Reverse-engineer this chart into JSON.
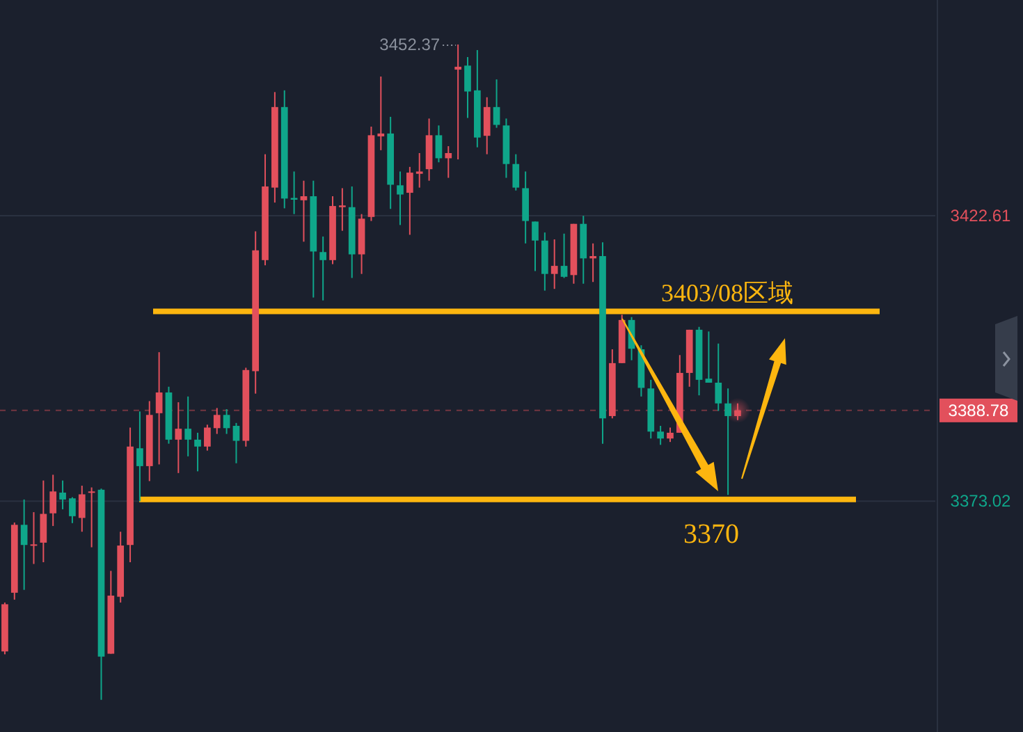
{
  "chart_data": {
    "type": "candlestick",
    "categories": [
      null,
      null,
      null,
      null,
      null,
      null,
      null,
      null,
      null,
      null,
      null,
      null,
      null,
      null,
      null,
      null,
      null,
      null,
      null,
      null,
      null,
      null,
      null,
      null,
      null,
      null,
      null,
      null,
      null,
      null,
      null,
      null,
      null,
      null,
      null,
      null,
      null,
      null,
      null,
      null,
      null,
      null,
      null,
      null,
      null,
      null,
      null,
      null,
      null,
      null,
      null,
      null,
      null,
      null,
      null,
      null,
      null,
      null,
      null,
      null,
      null,
      null,
      null,
      null,
      null,
      null,
      null,
      null,
      null,
      null,
      null,
      null,
      null,
      null,
      null,
      null,
      null,
      null,
      null,
      null,
      null,
      null,
      null,
      null,
      null,
      null,
      null,
      null,
      null,
      null,
      null,
      null,
      null,
      null,
      null,
      null,
      null
    ],
    "ohlc": [
      [
        3346.9,
        3355.4,
        3346.4,
        3355.1
      ],
      [
        3357.1,
        3369.3,
        3355.9,
        3368.9
      ],
      [
        3368.9,
        3373.3,
        3357.6,
        3365.4
      ],
      [
        3365.4,
        3371.1,
        3362.1,
        3365.5
      ],
      [
        3365.8,
        3376.6,
        3362.4,
        3370.8
      ],
      [
        3370.9,
        3377.6,
        3368.7,
        3374.7
      ],
      [
        3374.5,
        3376.6,
        3371.6,
        3373.3
      ],
      [
        3373.5,
        3373.7,
        3369.2,
        3370.4
      ],
      [
        3370.1,
        3375.7,
        3367.7,
        3374.2
      ],
      [
        3374.5,
        3375.4,
        3365.0,
        3374.7
      ],
      [
        3375.0,
        3375.2,
        3338.5,
        3346.0
      ],
      [
        3346.5,
        3360.9,
        3346.5,
        3356.6
      ],
      [
        3356.4,
        3367.7,
        3355.4,
        3365.3
      ],
      [
        3365.4,
        3385.8,
        3362.4,
        3382.5
      ],
      [
        3382.2,
        3388.6,
        3373.0,
        3379.1
      ],
      [
        3379.1,
        3390.4,
        3376.5,
        3388.0
      ],
      [
        3388.3,
        3398.9,
        3379.4,
        3391.9
      ],
      [
        3391.9,
        3392.9,
        3383.0,
        3383.7
      ],
      [
        3383.7,
        3390.2,
        3377.9,
        3385.6
      ],
      [
        3385.6,
        3391.2,
        3380.8,
        3383.7
      ],
      [
        3383.7,
        3384.9,
        3378.2,
        3382.5
      ],
      [
        3382.5,
        3386.3,
        3381.8,
        3385.8
      ],
      [
        3385.7,
        3389.2,
        3384.7,
        3388.0
      ],
      [
        3388.0,
        3389.0,
        3384.7,
        3385.7
      ],
      [
        3386.1,
        3386.6,
        3379.6,
        3383.5
      ],
      [
        3383.5,
        3396.2,
        3382.5,
        3395.8
      ],
      [
        3395.6,
        3419.9,
        3391.7,
        3416.6
      ],
      [
        3414.9,
        3433.3,
        3414.0,
        3427.7
      ],
      [
        3427.5,
        3444.1,
        3424.9,
        3441.5
      ],
      [
        3441.5,
        3444.4,
        3423.9,
        3425.6
      ],
      [
        3425.7,
        3430.3,
        3422.9,
        3425.4
      ],
      [
        3425.3,
        3428.7,
        3418.1,
        3426.0
      ],
      [
        3426.0,
        3428.7,
        3408.4,
        3416.4
      ],
      [
        3416.3,
        3419.0,
        3407.9,
        3414.9
      ],
      [
        3414.9,
        3426.0,
        3414.2,
        3424.3
      ],
      [
        3424.1,
        3427.4,
        3420.0,
        3424.4
      ],
      [
        3424.1,
        3427.7,
        3411.8,
        3415.9
      ],
      [
        3415.9,
        3422.9,
        3412.5,
        3422.1
      ],
      [
        3422.4,
        3438.1,
        3421.7,
        3436.6
      ],
      [
        3436.4,
        3446.8,
        3434.0,
        3436.9
      ],
      [
        3436.9,
        3439.8,
        3423.8,
        3428.0
      ],
      [
        3427.9,
        3430.3,
        3421.0,
        3426.3
      ],
      [
        3426.6,
        3431.1,
        3419.3,
        3430.1
      ],
      [
        3429.9,
        3433.5,
        3427.5,
        3430.3
      ],
      [
        3430.7,
        3439.5,
        3428.7,
        3436.6
      ],
      [
        3436.6,
        3438.3,
        3431.9,
        3432.6
      ],
      [
        3432.6,
        3434.7,
        3429.2,
        3433.5
      ],
      [
        3448.0,
        3452.37,
        3432.4,
        3448.5
      ],
      [
        3448.7,
        3450.2,
        3439.6,
        3444.2
      ],
      [
        3444.4,
        3451.4,
        3434.5,
        3436.2
      ],
      [
        3436.5,
        3443.2,
        3433.3,
        3441.5
      ],
      [
        3441.5,
        3446.3,
        3437.9,
        3438.4
      ],
      [
        3438.3,
        3439.5,
        3429.2,
        3431.6
      ],
      [
        3431.6,
        3433.3,
        3427.0,
        3427.5
      ],
      [
        3427.4,
        3430.3,
        3417.8,
        3421.7
      ],
      [
        3421.6,
        3421.6,
        3413.0,
        3418.3
      ],
      [
        3418.3,
        3419.7,
        3409.6,
        3412.5
      ],
      [
        3412.5,
        3418.5,
        3409.9,
        3413.9
      ],
      [
        3413.9,
        3419.5,
        3411.8,
        3412.0
      ],
      [
        3412.3,
        3421.2,
        3410.8,
        3421.2
      ],
      [
        3421.2,
        3422.6,
        3410.8,
        3415.2
      ],
      [
        3415.2,
        3417.8,
        3411.1,
        3415.6
      ],
      [
        3415.6,
        3418.0,
        3383.0,
        3387.4
      ],
      [
        3387.8,
        3399.4,
        3387.4,
        3397.0
      ],
      [
        3397.0,
        3405.4,
        3397.0,
        3404.5
      ],
      [
        3404.5,
        3405.0,
        3397.5,
        3399.5
      ],
      [
        3399.4,
        3400.1,
        3391.2,
        3392.7
      ],
      [
        3392.6,
        3394.1,
        3383.9,
        3385.1
      ],
      [
        3385.1,
        3386.1,
        3382.8,
        3383.9
      ],
      [
        3383.9,
        3385.8,
        3383.3,
        3384.9
      ],
      [
        3384.9,
        3398.4,
        3384.9,
        3395.3
      ],
      [
        3395.3,
        3402.8,
        3392.9,
        3402.8
      ],
      [
        3402.8,
        3403.3,
        3391.4,
        3394.1
      ],
      [
        3394.3,
        3402.5,
        3393.6,
        3393.6
      ],
      [
        3393.6,
        3400.4,
        3388.7,
        3390.0
      ],
      [
        3390.0,
        3392.6,
        3374.1,
        3387.8
      ],
      [
        3387.8,
        3390.0,
        3387.1,
        3388.78
      ],
      null,
      null,
      null,
      null,
      null,
      null,
      null,
      null,
      null,
      null,
      null,
      null,
      null,
      null,
      null,
      null,
      null,
      null,
      null,
      null
    ],
    "colors": [
      "#e2505c",
      "#e2505c",
      "#0fa68a",
      "#e2505c",
      "#e2505c",
      "#e2505c",
      "#0fa68a",
      "#0fa68a",
      "#e2505c",
      "#e2505c",
      "#0fa68a",
      "#e2505c",
      "#e2505c",
      "#e2505c",
      "#0fa68a",
      "#e2505c",
      "#e2505c",
      "#0fa68a",
      "#e2505c",
      "#0fa68a",
      "#0fa68a",
      "#e2505c",
      "#e2505c",
      "#0fa68a",
      "#0fa68a",
      "#e2505c",
      "#e2505c",
      "#e2505c",
      "#e2505c",
      "#0fa68a",
      "#0fa68a",
      "#e2505c",
      "#0fa68a",
      "#0fa68a",
      "#e2505c",
      "#e2505c",
      "#0fa68a",
      "#e2505c",
      "#e2505c",
      "#e2505c",
      "#0fa68a",
      "#0fa68a",
      "#e2505c",
      "#e2505c",
      "#e2505c",
      "#0fa68a",
      "#e2505c",
      "#e2505c",
      "#0fa68a",
      "#0fa68a",
      "#e2505c",
      "#0fa68a",
      "#0fa68a",
      "#0fa68a",
      "#0fa68a",
      "#0fa68a",
      "#0fa68a",
      "#e2505c",
      "#0fa68a",
      "#e2505c",
      "#0fa68a",
      "#e2505c",
      "#0fa68a",
      "#e2505c",
      "#e2505c",
      "#0fa68a",
      "#0fa68a",
      "#0fa68a",
      "#0fa68a",
      "#e2505c",
      "#e2505c",
      "#e2505c",
      "#0fa68a",
      "#0fa68a",
      "#0fa68a",
      "#0fa68a",
      "#e2505c",
      null,
      null,
      null,
      null,
      null,
      null,
      null,
      null,
      null,
      null,
      null,
      null,
      null,
      null,
      null,
      null,
      null,
      null,
      null,
      null
    ],
    "ylim": [
      3332.9,
      3460.1
    ],
    "yticks": [
      3373.02,
      3422.61
    ],
    "grid": "y",
    "tick_labels": "y",
    "ref_lines": [
      {
        "axis": "y",
        "value": 3388.78,
        "label": "3388.78",
        "color": "#e2505c",
        "line_style": "dashed"
      },
      {
        "axis": "y",
        "value": 3406.0,
        "label": "3403/08区域",
        "color": "#fdb60f"
      },
      {
        "axis": "y",
        "value": 3373.3,
        "color": "#fdb60f"
      }
    ],
    "annotations": [
      "3452.37",
      "3370"
    ]
  }
}
